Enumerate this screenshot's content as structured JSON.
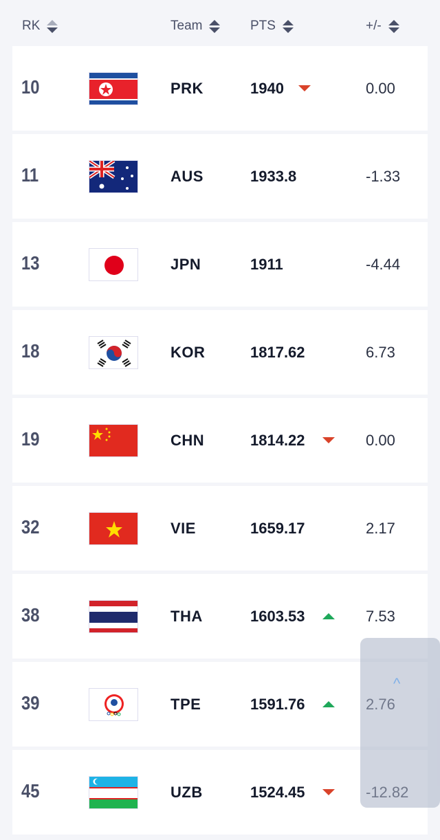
{
  "header": {
    "rank": "RK",
    "team": "Team",
    "points": "PTS",
    "change": "+/-"
  },
  "colors": {
    "up": "#1fa85a",
    "down": "#d9432a"
  },
  "rows": [
    {
      "rank": "10",
      "flag": "north-korea-flag",
      "team": "PRK",
      "points": "1940",
      "trend": "down",
      "change": "0.00"
    },
    {
      "rank": "11",
      "flag": "australia-flag",
      "team": "AUS",
      "points": "1933.8",
      "trend": "none",
      "change": "-1.33"
    },
    {
      "rank": "13",
      "flag": "japan-flag",
      "team": "JPN",
      "points": "1911",
      "trend": "none",
      "change": "-4.44"
    },
    {
      "rank": "18",
      "flag": "south-korea-flag",
      "team": "KOR",
      "points": "1817.62",
      "trend": "none",
      "change": "6.73"
    },
    {
      "rank": "19",
      "flag": "china-flag",
      "team": "CHN",
      "points": "1814.22",
      "trend": "down",
      "change": "0.00"
    },
    {
      "rank": "32",
      "flag": "vietnam-flag",
      "team": "VIE",
      "points": "1659.17",
      "trend": "none",
      "change": "2.17"
    },
    {
      "rank": "38",
      "flag": "thailand-flag",
      "team": "THA",
      "points": "1603.53",
      "trend": "up",
      "change": "7.53"
    },
    {
      "rank": "39",
      "flag": "chinese-taipei-flag",
      "team": "TPE",
      "points": "1591.76",
      "trend": "up",
      "change": "2.76"
    },
    {
      "rank": "45",
      "flag": "uzbekistan-flag",
      "team": "UZB",
      "points": "1524.45",
      "trend": "down",
      "change": "-12.82"
    }
  ],
  "scroll_top": {
    "icon": "chevron-up-icon",
    "glyph": "^"
  }
}
